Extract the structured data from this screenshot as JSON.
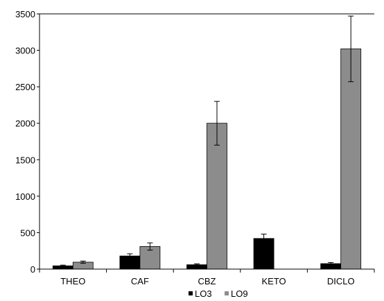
{
  "chart_data": {
    "type": "bar",
    "title": "",
    "xlabel": "",
    "ylabel": "",
    "ylim": [
      0,
      3500
    ],
    "yticks": [
      0,
      500,
      1000,
      1500,
      2000,
      2500,
      3000,
      3500
    ],
    "ytick_labels": [
      "0",
      "500",
      "1000",
      "1500",
      "2000",
      "2500",
      "3000",
      "3500"
    ],
    "categories": [
      "THEO",
      "CAF",
      "CBZ",
      "KETO",
      "DICLO"
    ],
    "series": [
      {
        "name": "LO3",
        "color": "#000000",
        "values": [
          45,
          180,
          60,
          420,
          75
        ],
        "errors": [
          10,
          30,
          12,
          60,
          15
        ]
      },
      {
        "name": "LO9",
        "color": "#8c8c8c",
        "values": [
          95,
          310,
          2000,
          0,
          3020
        ],
        "errors": [
          15,
          50,
          300,
          0,
          450
        ]
      }
    ],
    "grid": false,
    "legend_position": "bottom"
  }
}
